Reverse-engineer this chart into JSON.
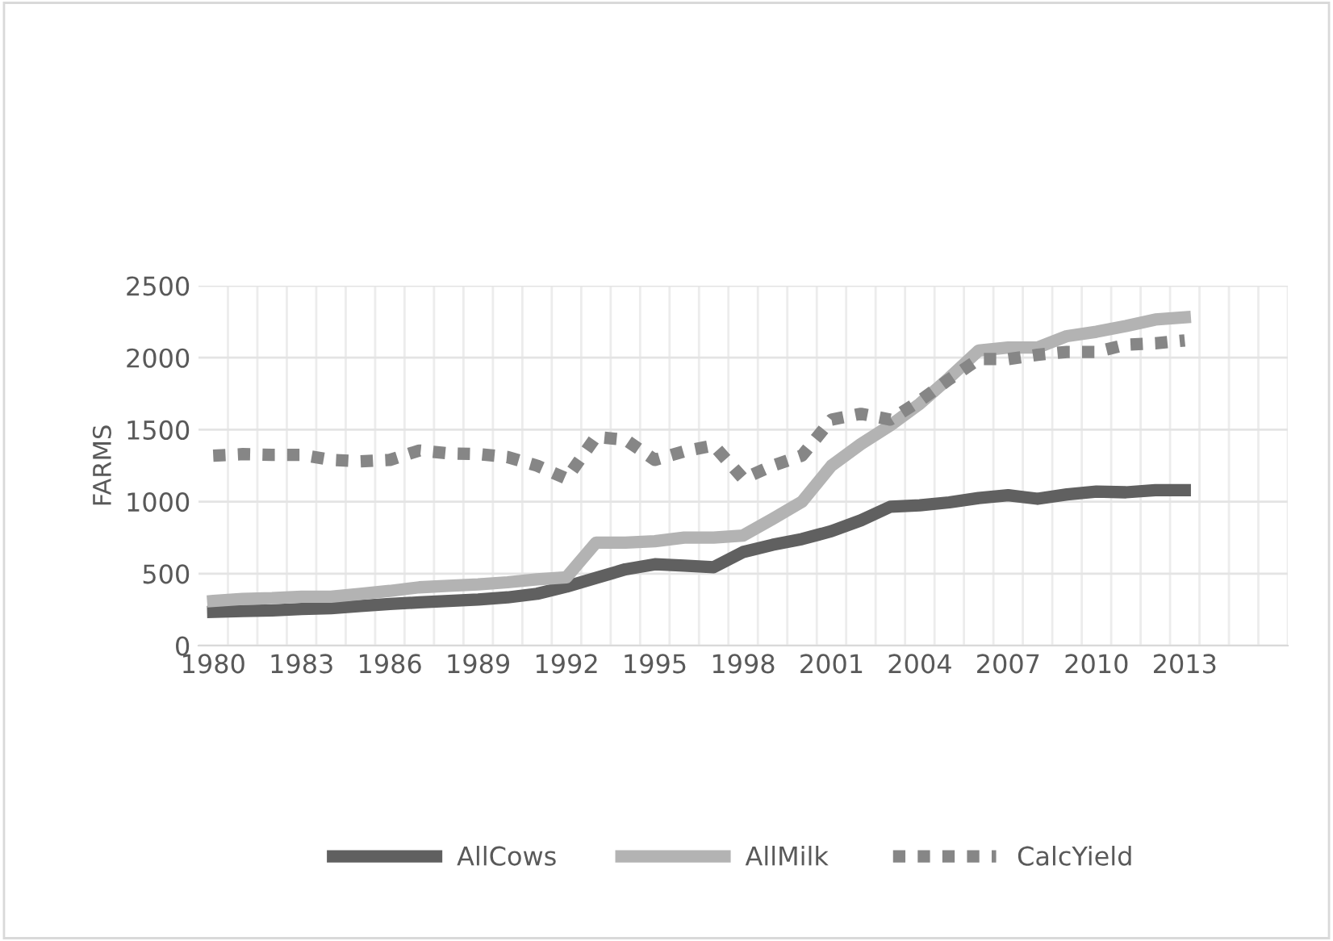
{
  "chart_data": {
    "type": "line",
    "ylabel": "FARMS",
    "categories": [
      "1980",
      null,
      null,
      "1983",
      null,
      null,
      "1986",
      null,
      null,
      "1989",
      null,
      null,
      "1992",
      null,
      null,
      "1995",
      null,
      null,
      "1998",
      null,
      null,
      "2001",
      null,
      null,
      "2004",
      null,
      null,
      "2007",
      null,
      null,
      "2010",
      null,
      null,
      "2013",
      null,
      null,
      null
    ],
    "ylim": [
      0,
      2500
    ],
    "yticks": [
      0,
      500,
      1000,
      1500,
      2000,
      2500
    ],
    "grid": true,
    "legend": "bottom",
    "series": [
      {
        "name": "AllCows",
        "color": "#606060",
        "line_style": "solid",
        "values": [
          235,
          240,
          245,
          255,
          260,
          275,
          290,
          300,
          310,
          320,
          335,
          360,
          410,
          470,
          530,
          565,
          555,
          545,
          650,
          700,
          740,
          795,
          870,
          965,
          975,
          995,
          1025,
          1045,
          1020,
          1050,
          1070,
          1065,
          1080,
          1080,
          null,
          null,
          null
        ]
      },
      {
        "name": "AllMilk",
        "color": "#b3b3b3",
        "line_style": "solid",
        "values": [
          310,
          325,
          330,
          340,
          340,
          360,
          380,
          405,
          415,
          425,
          440,
          460,
          475,
          715,
          715,
          725,
          750,
          750,
          765,
          880,
          1000,
          1250,
          1400,
          1530,
          1680,
          1860,
          2050,
          2070,
          2070,
          2150,
          2180,
          2220,
          2265,
          2280,
          null,
          null,
          null
        ]
      },
      {
        "name": "CalcYield",
        "color": "#868686",
        "line_style": "dotted",
        "values": [
          1320,
          1330,
          1325,
          1325,
          1290,
          1280,
          1290,
          1355,
          1335,
          1330,
          1310,
          1250,
          1160,
          1450,
          1430,
          1290,
          1350,
          1390,
          1160,
          1250,
          1320,
          1570,
          1610,
          1570,
          1700,
          1850,
          1990,
          1990,
          2020,
          2040,
          2040,
          2090,
          2100,
          2120,
          null,
          null,
          null
        ]
      }
    ]
  }
}
